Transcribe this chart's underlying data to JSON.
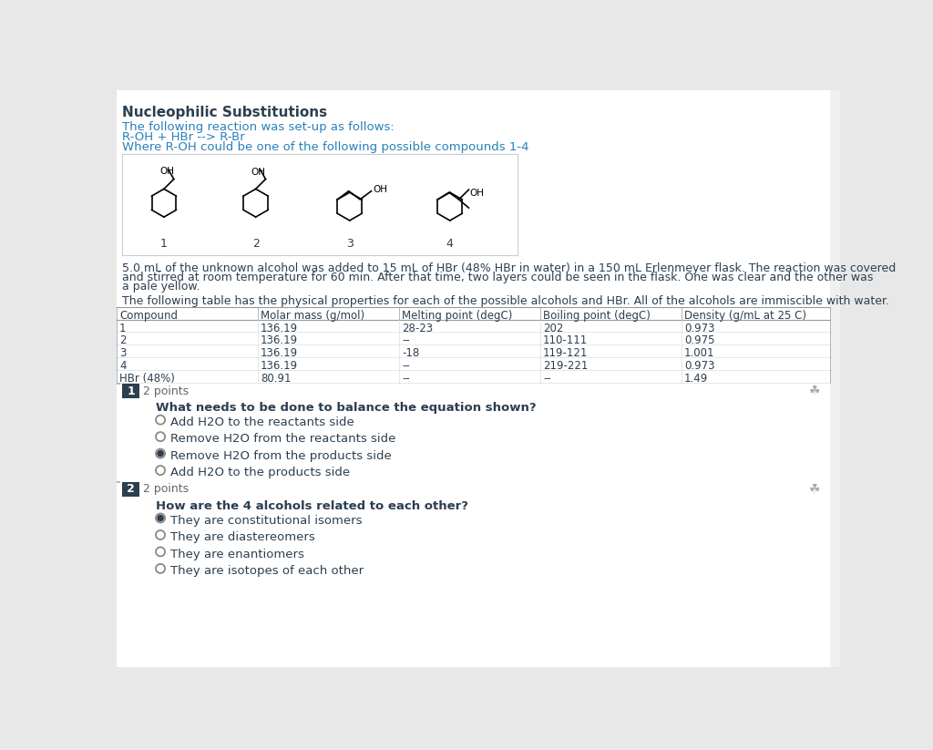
{
  "title": "Nucleophilic Substitutions",
  "bg_color": "#e8e8e8",
  "content_bg": "#ffffff",
  "text_color": "#2c3e50",
  "link_color": "#2980b9",
  "intro_lines": [
    "The following reaction was set-up as follows:",
    "R-OH + HBr --> R-Br",
    "Where R-OH could be one of the following possible compounds 1-4"
  ],
  "paragraph": "5.0 mL of the unknown alcohol was added to 15 mL of HBr (48% HBr in water) in a 150 mL Erlenmeyer flask. The reaction was covered and stirred at room temperature for 60 min. After that time, two layers could be seen in the flask. One was clear and the other was a pale yellow.",
  "table_intro": "The following table has the physical properties for each of the possible alcohols and HBr. All of the alcohols are immiscible with water.",
  "table_headers": [
    "Compound",
    "Molar mass (g/mol)",
    "Melting point (degC)",
    "Boiling point (degC)",
    "Density (g/mL at 25 C)"
  ],
  "table_rows": [
    [
      "1",
      "136.19",
      "28-23",
      "202",
      "0.973"
    ],
    [
      "2",
      "136.19",
      "--",
      "110-111",
      "0.975"
    ],
    [
      "3",
      "136.19",
      "-18",
      "119-121",
      "1.001"
    ],
    [
      "4",
      "136.19",
      "--",
      "219-221",
      "0.973"
    ],
    [
      "HBr (48%)",
      "80.91",
      "--",
      "--",
      "1.49"
    ]
  ],
  "question1_num": "1",
  "question1_points": "2 points",
  "question1_text": "What needs to be done to balance the equation shown?",
  "question1_options": [
    "Add H2O to the reactants side",
    "Remove H2O from the reactants side",
    "Remove H2O from the products side",
    "Add H2O to the products side"
  ],
  "question1_selected": 2,
  "question2_num": "2",
  "question2_points": "2 points",
  "question2_text": "How are the 4 alcohols related to each other?",
  "question2_options": [
    "They are constitutional isomers",
    "They are diastereomers",
    "They are enantiomers",
    "They are isotopes of each other"
  ],
  "question2_selected": 0,
  "scrollbar_color": "#cccccc",
  "header_bg": "#2c3e50",
  "header_text": "#ffffff",
  "dashed_line_color": "#aaaaaa"
}
